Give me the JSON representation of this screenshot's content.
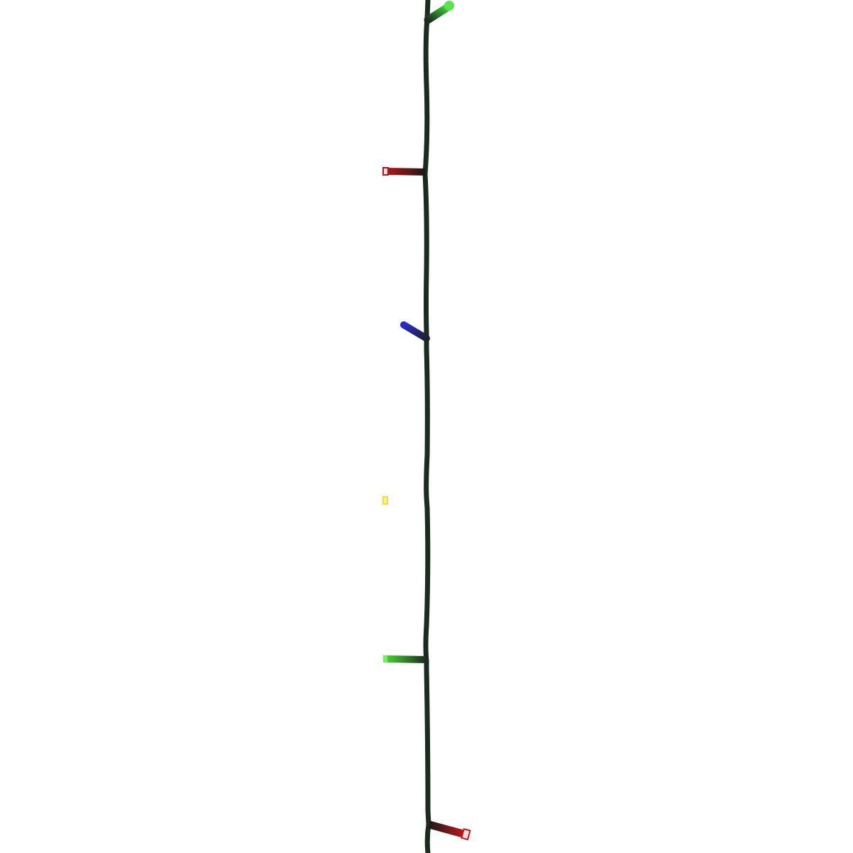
{
  "photo": {
    "subject": "led-string-lights",
    "background_color": "#ffffff",
    "wire_color": "#1c2a1f",
    "bulbs": [
      {
        "color": "green",
        "hex": "#3fd23a"
      },
      {
        "color": "red",
        "hex": "#c4161c"
      },
      {
        "color": "blue",
        "hex": "#2a2ad0"
      },
      {
        "color": "yellow",
        "hex": "#e8e040"
      },
      {
        "color": "green",
        "hex": "#44d030"
      },
      {
        "color": "red",
        "hex": "#c4161c"
      }
    ]
  }
}
